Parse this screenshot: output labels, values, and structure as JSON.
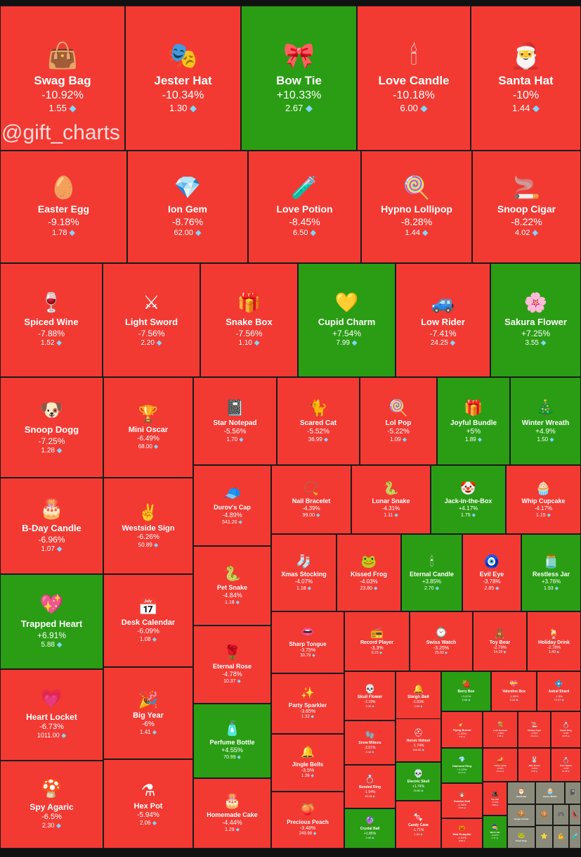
{
  "watermark": "@gift_charts",
  "currency_icon": "diamond-icon",
  "colors": {
    "down": "#f23a33",
    "up": "#2a9d14",
    "neutral": "#8b8b7c"
  },
  "chart_data": {
    "type": "treemap",
    "metric": "price change %",
    "items": [
      {
        "name": "Swag Bag",
        "change": "-10.92%",
        "price": "1.55",
        "icon": "👜"
      },
      {
        "name": "Jester Hat",
        "change": "-10.34%",
        "price": "1.30",
        "icon": "🎭"
      },
      {
        "name": "Bow Tie",
        "change": "+10.33%",
        "price": "2.67",
        "icon": "🎀"
      },
      {
        "name": "Love Candle",
        "change": "-10.18%",
        "price": "6.00",
        "icon": "🕯"
      },
      {
        "name": "Santa Hat",
        "change": "-10%",
        "price": "1.44",
        "icon": "🎅"
      },
      {
        "name": "Easter Egg",
        "change": "-9.18%",
        "price": "1.78",
        "icon": "🥚"
      },
      {
        "name": "Ion Gem",
        "change": "-8.76%",
        "price": "62.00",
        "icon": "💎"
      },
      {
        "name": "Love Potion",
        "change": "-8.45%",
        "price": "6.50",
        "icon": "🧪"
      },
      {
        "name": "Hypno Lollipop",
        "change": "-8.28%",
        "price": "1.44",
        "icon": "🍭"
      },
      {
        "name": "Snoop Cigar",
        "change": "-8.22%",
        "price": "4.02",
        "icon": "🚬"
      },
      {
        "name": "Spiced Wine",
        "change": "-7.88%",
        "price": "1.52",
        "icon": "🍷"
      },
      {
        "name": "Light Sword",
        "change": "-7.56%",
        "price": "2.20",
        "icon": "⚔"
      },
      {
        "name": "Snake Box",
        "change": "-7.56%",
        "price": "1.10",
        "icon": "🎁"
      },
      {
        "name": "Cupid Charm",
        "change": "+7.54%",
        "price": "7.99",
        "icon": "💛"
      },
      {
        "name": "Low Rider",
        "change": "-7.41%",
        "price": "24.25",
        "icon": "🚙"
      },
      {
        "name": "Sakura Flower",
        "change": "+7.25%",
        "price": "3.55",
        "icon": "🌸"
      },
      {
        "name": "Snoop Dogg",
        "change": "-7.25%",
        "price": "1.28",
        "icon": "🐶"
      },
      {
        "name": "Mini Oscar",
        "change": "-6.49%",
        "price": "68.00",
        "icon": "🏆"
      },
      {
        "name": "Star Notepad",
        "change": "-5.56%",
        "price": "1.70",
        "icon": "📓"
      },
      {
        "name": "Scared Cat",
        "change": "-5.52%",
        "price": "36.99",
        "icon": "🐈"
      },
      {
        "name": "Lol Pop",
        "change": "-5.22%",
        "price": "1.09",
        "icon": "🍭"
      },
      {
        "name": "Joyful Bundle",
        "change": "+5%",
        "price": "1.89",
        "icon": "🎁"
      },
      {
        "name": "Winter Wreath",
        "change": "+4.9%",
        "price": "1.50",
        "icon": "🎄"
      },
      {
        "name": "B-Day Candle",
        "change": "-6.96%",
        "price": "1.07",
        "icon": "🎂"
      },
      {
        "name": "Westside Sign",
        "change": "-6.26%",
        "price": "50.89",
        "icon": "✌"
      },
      {
        "name": "Durov's Cap",
        "change": "-4.89%",
        "price": "541.20",
        "icon": "🧢"
      },
      {
        "name": "Nail Bracelet",
        "change": "-4.39%",
        "price": "99.00",
        "icon": "📿"
      },
      {
        "name": "Lunar Snake",
        "change": "-4.31%",
        "price": "1.11",
        "icon": "🐍"
      },
      {
        "name": "Jack-in-the-Box",
        "change": "+4.17%",
        "price": "1.75",
        "icon": "🤡"
      },
      {
        "name": "Whip Cupcake",
        "change": "-4.17%",
        "price": "1.15",
        "icon": "🧁"
      },
      {
        "name": "Trapped Heart",
        "change": "+6.91%",
        "price": "5.88",
        "icon": "💖"
      },
      {
        "name": "Desk Calendar",
        "change": "-6.09%",
        "price": "1.08",
        "icon": "📅"
      },
      {
        "name": "Pet Snake",
        "change": "-4.84%",
        "price": "1.18",
        "icon": "🐍"
      },
      {
        "name": "Xmas Stocking",
        "change": "-4.07%",
        "price": "1.18",
        "icon": "🧦"
      },
      {
        "name": "Kissed Frog",
        "change": "-4.03%",
        "price": "23.80",
        "icon": "🐸"
      },
      {
        "name": "Eternal Candle",
        "change": "+3.85%",
        "price": "2.70",
        "icon": "🕯"
      },
      {
        "name": "Evil Eye",
        "change": "-3.78%",
        "price": "2.85",
        "icon": "🧿"
      },
      {
        "name": "Restless Jar",
        "change": "+3.76%",
        "price": "1.93",
        "icon": "🫙"
      },
      {
        "name": "Heart Locket",
        "change": "-6.73%",
        "price": "1011.00",
        "icon": "💗"
      },
      {
        "name": "Big Year",
        "change": "-6%",
        "price": "1.41",
        "icon": "🎉"
      },
      {
        "name": "Eternal Rose",
        "change": "-4.78%",
        "price": "10.37",
        "icon": "🌹"
      },
      {
        "name": "Sharp Tongue",
        "change": "-3.75%",
        "price": "30.79",
        "icon": "👄"
      },
      {
        "name": "Record Player",
        "change": "-3.3%",
        "price": "6.15",
        "icon": "📻"
      },
      {
        "name": "Swiss Watch",
        "change": "-3.25%",
        "price": "25.93",
        "icon": "⌚"
      },
      {
        "name": "Toy Bear",
        "change": "-2.79%",
        "price": "14.28",
        "icon": "🧸"
      },
      {
        "name": "Holiday Drink",
        "change": "-2.78%",
        "price": "1.40",
        "icon": "🍹"
      },
      {
        "name": "Perfume Bottle",
        "change": "+4.55%",
        "price": "70.99",
        "icon": "🧴"
      },
      {
        "name": "Party Sparkler",
        "change": "-3.65%",
        "price": "1.32",
        "icon": "✨"
      },
      {
        "name": "Skull Flower",
        "change": "-2.18%",
        "price": "3.39",
        "icon": "💀"
      },
      {
        "name": "Sleigh Bell",
        "change": "-1.83%",
        "price": "2.69",
        "icon": "🔔"
      },
      {
        "name": "Berry Box",
        "change": "+1.67%",
        "price": "3.06",
        "icon": "🍓"
      },
      {
        "name": "Valentine Box",
        "change": "-1.59%",
        "price": "3.10",
        "icon": "💝"
      },
      {
        "name": "Astral Shard",
        "change": "-1.5%",
        "price": "72.97",
        "icon": "💠"
      },
      {
        "name": "Spy Agaric",
        "change": "-6.5%",
        "price": "2.30",
        "icon": "🍄"
      },
      {
        "name": "Hex Pot",
        "change": "-5.94%",
        "price": "2.06",
        "icon": "⚗"
      },
      {
        "name": "Snow Mittens",
        "change": "-2.01%",
        "price": "3.44",
        "icon": "🧤"
      },
      {
        "name": "Heroic Helmet",
        "change": "-1.74%",
        "price": "166.00",
        "icon": "⛑"
      },
      {
        "name": "Flying Broom",
        "change": "-1.37%",
        "price": "3.47",
        "icon": "🧹"
      },
      {
        "name": "Lush Bouquet",
        "change": "-1.06%",
        "price": "1.98",
        "icon": "💐"
      },
      {
        "name": "Vintage Cigar",
        "change": "-1.05%",
        "price": "16.22",
        "icon": "🚬"
      },
      {
        "name": "Signet Ring",
        "change": "-0.9%",
        "price": "29.55",
        "icon": "💍"
      },
      {
        "name": "Jingle Bells",
        "change": "-3.5%",
        "price": "1.36",
        "icon": "🔔"
      },
      {
        "name": "Bonded Ring",
        "change": "-1.94%",
        "price": "40.26",
        "icon": "💍"
      },
      {
        "name": "Electric Skull",
        "change": "+1.74%",
        "price": "20.60",
        "icon": "💀"
      },
      {
        "name": "Diamond Ring",
        "change": "+1.23%",
        "price": "14.14",
        "icon": "💎"
      },
      {
        "name": "Genie Lamp",
        "change": "-0.89%",
        "price": "36.12",
        "icon": "🪔"
      },
      {
        "name": "Jelly Bunny",
        "change": "-0.85%",
        "price": "3.16",
        "icon": "🐰"
      },
      {
        "name": "Gem Signet",
        "change": "-0.8%",
        "price": "51.39",
        "icon": "💍"
      },
      {
        "name": "Homemade Cake",
        "change": "-4.44%",
        "price": "1.29",
        "icon": "🎂"
      },
      {
        "name": "Precious Peach",
        "change": "-3.48%",
        "price": "249.98",
        "icon": "🍑"
      },
      {
        "name": "Crystal Ball",
        "change": "+1.85%",
        "price": "4.49",
        "icon": "🔮"
      },
      {
        "name": "Candy Cane",
        "change": "-1.71%",
        "price": "1.54",
        "icon": "🍬"
      },
      {
        "name": "Voodoo Doll",
        "change": "-1.16%",
        "price": "15.26",
        "icon": "🪆"
      },
      {
        "name": "Mad Pumpkin",
        "change": "-1.21%",
        "price": "6.58",
        "icon": "🎃"
      },
      {
        "name": "Top Hat",
        "change": "-0.72%",
        "price": "4.99",
        "icon": "🎩"
      },
      {
        "name": "Witch Hat",
        "change": "+0.57%",
        "price": "1.77",
        "icon": "🧙"
      },
      {
        "name": "Santa Hat",
        "change": "",
        "price": "",
        "icon": "🎅"
      },
      {
        "name": "Bunny Muffin",
        "change": "",
        "price": "",
        "icon": "🧁"
      },
      {
        "name": "Star Notepad",
        "change": "",
        "price": "",
        "icon": "📓"
      },
      {
        "name": "Ginger Cookie",
        "change": "",
        "price": "",
        "icon": "🍪"
      },
      {
        "name": "Cookie Heart",
        "change": "",
        "price": "",
        "icon": "🍪"
      },
      {
        "name": "Tama Gadget",
        "change": "",
        "price": "",
        "icon": "🎮"
      },
      {
        "name": "Sky Stilettos",
        "change": "",
        "price": "",
        "icon": "👠"
      },
      {
        "name": "Plush Pepe",
        "change": "",
        "price": "",
        "icon": "🐸"
      },
      {
        "name": "Hanging Star",
        "change": "",
        "price": "",
        "icon": "⭐"
      },
      {
        "name": "Mighty Arm",
        "change": "",
        "price": "",
        "icon": "💪"
      },
      {
        "name": "Magic Potion",
        "change": "",
        "price": "",
        "icon": "🧪"
      }
    ]
  }
}
